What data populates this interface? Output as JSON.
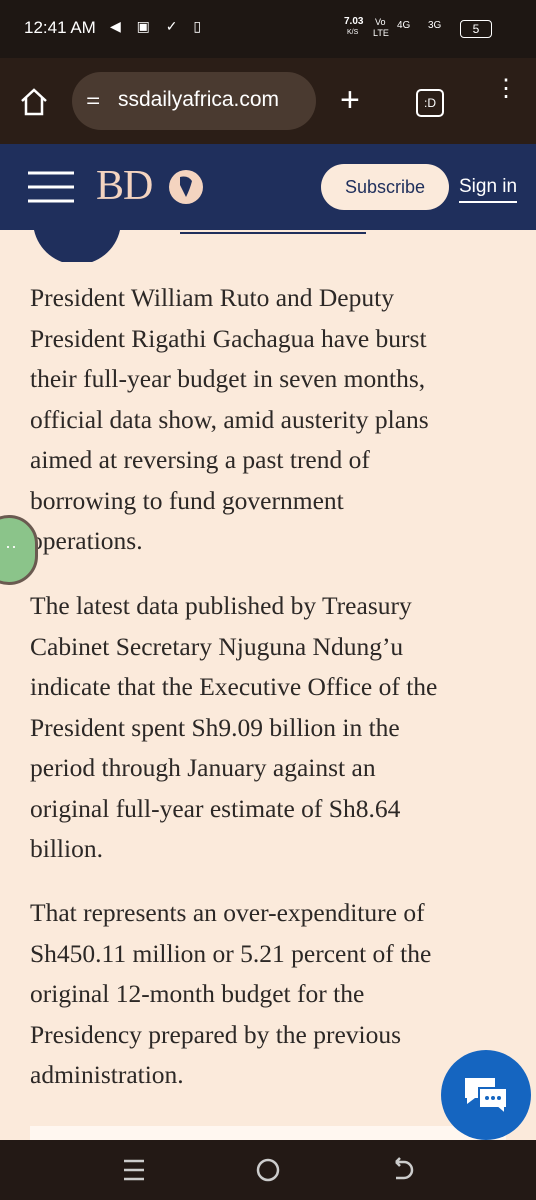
{
  "status_bar": {
    "time": "12:41 AM",
    "speed": "7.03",
    "speed_unit": "K/S",
    "volte": "Vo",
    "lte": "LTE",
    "net1": "4G",
    "net2": "3G",
    "battery": "5"
  },
  "browser": {
    "url": "ssdailyafrica.com",
    "tabs": ":D"
  },
  "header": {
    "logo": "BD",
    "subscribe": "Subscribe",
    "sign_in": "Sign in"
  },
  "article": {
    "paragraphs": [
      [
        "President William Ruto and Deputy",
        "President Rigathi Gachagua have burst",
        "their full-year budget in seven months,",
        "official data show, amid austerity plans",
        "aimed at reversing a past trend of",
        "borrowing to fund government",
        "operations."
      ],
      [
        "The latest data published by Treasury",
        "Cabinet Secretary Njuguna Ndung’u",
        "indicate that the Executive Office of the",
        "President spent Sh9.09 billion in the",
        "period through January against an",
        "original full-year estimate of Sh8.64",
        "billion."
      ],
      [
        "That represents an over-expenditure of",
        "Sh450.11 million or 5.21 percent of the",
        "original 12-month budget for the",
        "Presidency prepared by the previous",
        "administration."
      ]
    ]
  }
}
